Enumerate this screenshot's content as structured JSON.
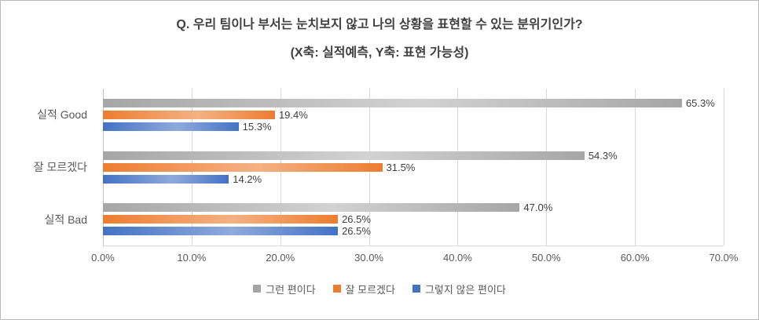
{
  "chart_data": {
    "type": "bar",
    "orientation": "horizontal",
    "title": "Q. 우리 팀이나 부서는 눈치보지 않고 나의 상황을 표현할 수 있는 분위기인가?",
    "subtitle": "(X축: 실적예측, Y축: 표현 가능성)",
    "categories": [
      "실적 Good",
      "잘 모르겠다",
      "실적 Bad"
    ],
    "series": [
      {
        "name": "그런 편이다",
        "color": "#a6a6a6",
        "color_light": "#d2d2d2",
        "values": [
          65.3,
          54.3,
          47.0
        ],
        "labels": [
          "65.3%",
          "54.3%",
          "47.0%"
        ]
      },
      {
        "name": "잘 모르겠다",
        "color": "#ed7d31",
        "color_light": "#f5b183",
        "values": [
          19.4,
          31.5,
          26.5
        ],
        "labels": [
          "19.4%",
          "31.5%",
          "26.5%"
        ]
      },
      {
        "name": "그렇지 않은 편이다",
        "color": "#4472c4",
        "color_light": "#8faadc",
        "values": [
          15.3,
          14.2,
          26.5
        ],
        "labels": [
          "15.3%",
          "14.2%",
          "26.5%"
        ]
      }
    ],
    "xlabel": "",
    "ylabel": "",
    "xlim": [
      0,
      70
    ],
    "x_ticks": [
      "0.0%",
      "10.0%",
      "20.0%",
      "30.0%",
      "40.0%",
      "50.0%",
      "60.0%",
      "70.0%"
    ],
    "grid": "vertical",
    "legend_position": "bottom",
    "value_labels_shown": true
  },
  "colors": {
    "frame_border": "#b9b9b9",
    "gridline": "#d9d9d9",
    "title_text": "#404040",
    "axis_text": "#595959",
    "value_text": "#3f3f3f"
  }
}
